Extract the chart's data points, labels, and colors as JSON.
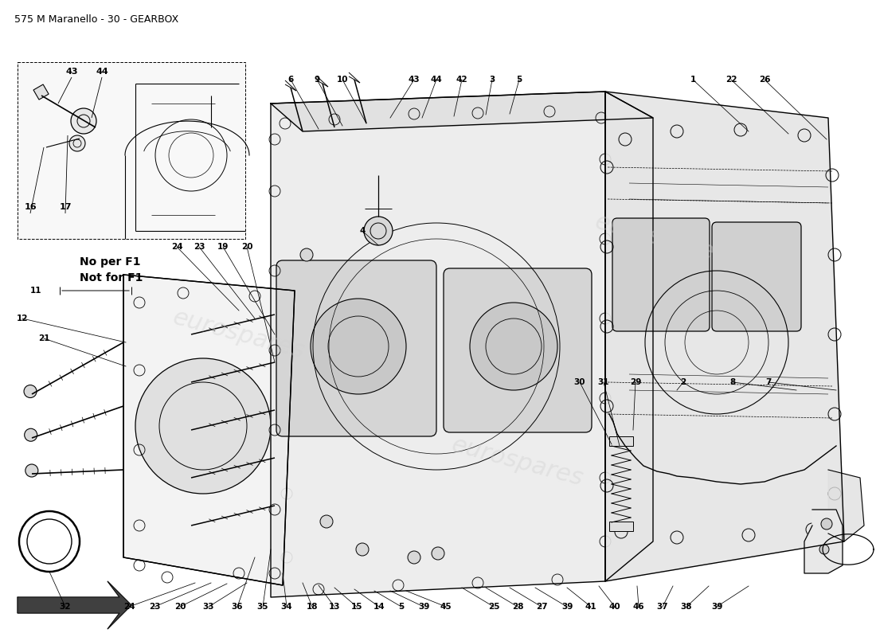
{
  "title": "575 M Maranello - 30 - GEARBOX",
  "bg": "#ffffff",
  "title_fs": 9,
  "note_text1": "No per F1",
  "note_text2": "Not for F1",
  "watermark": "eurospares",
  "label_fs": 7.5,
  "lw_main": 1.0,
  "lw_thin": 0.6,
  "lw_leader": 0.55
}
